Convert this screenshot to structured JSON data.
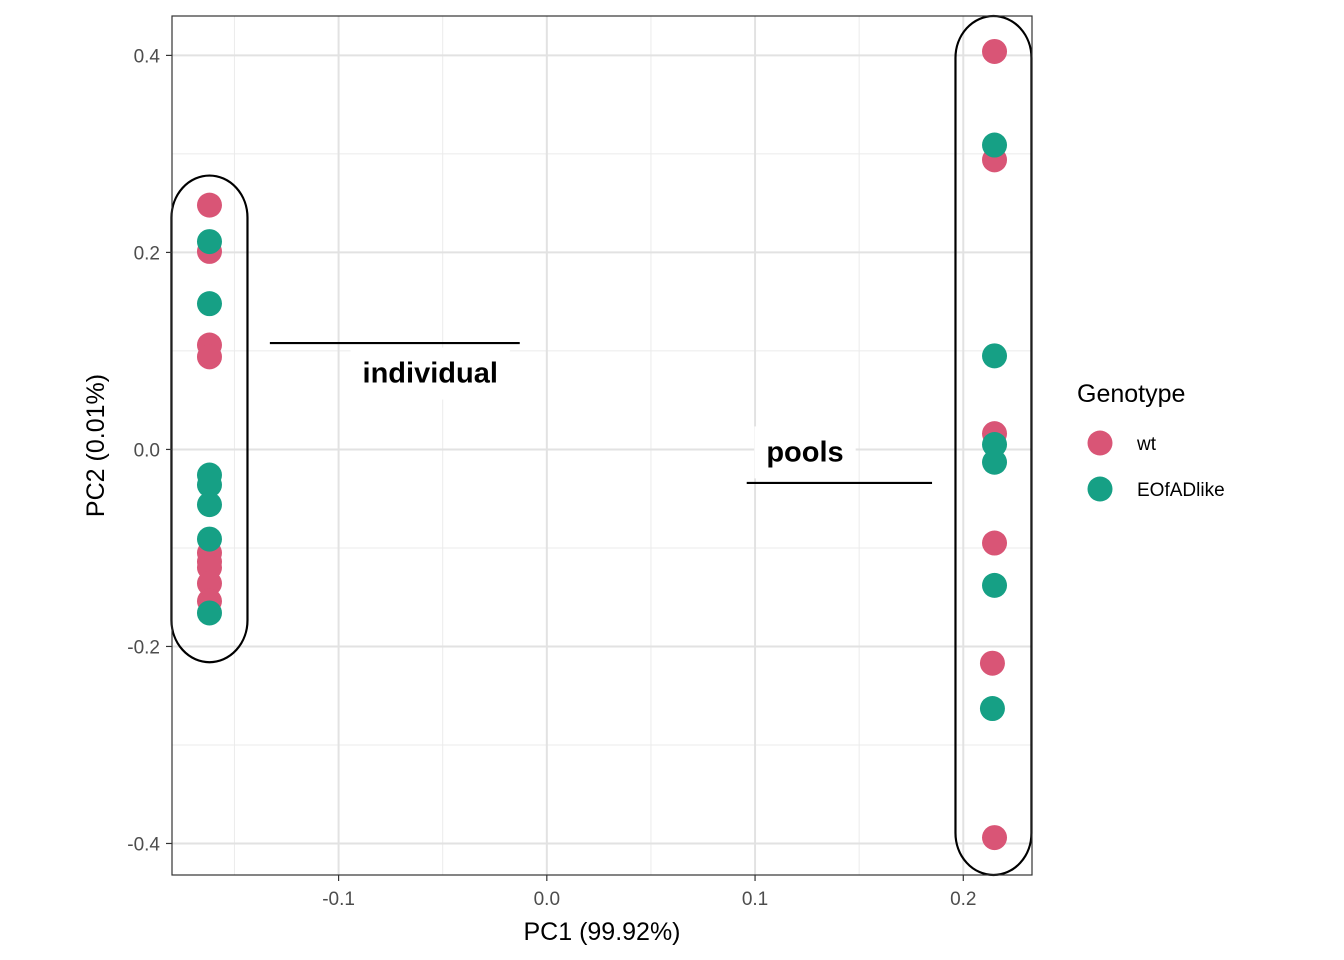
{
  "chart_data": {
    "type": "scatter",
    "xlabel": "PC1 (99.92%)",
    "ylabel": "PC2 (0.01%)",
    "xlim": [
      -0.18,
      0.233
    ],
    "ylim": [
      -0.432,
      0.44
    ],
    "x_ticks": [
      -0.1,
      0.0,
      0.1,
      0.2
    ],
    "x_tick_labels": [
      "-0.1",
      "0.0",
      "0.1",
      "0.2"
    ],
    "y_ticks": [
      -0.4,
      -0.2,
      0.0,
      0.2,
      0.4
    ],
    "y_tick_labels": [
      "-0.4",
      "-0.2",
      "0.0",
      "0.2",
      "0.4"
    ],
    "grid": true,
    "legend": {
      "title": "Genotype",
      "position": "right",
      "entries": [
        {
          "label": "wt",
          "color": "#D95576"
        },
        {
          "label": "EOfADlike",
          "color": "#16A085"
        }
      ]
    },
    "series": [
      {
        "name": "wt",
        "color": "#D95576",
        "points": [
          {
            "x": -0.162,
            "y": 0.248
          },
          {
            "x": -0.162,
            "y": 0.201
          },
          {
            "x": -0.162,
            "y": 0.106
          },
          {
            "x": -0.162,
            "y": 0.094
          },
          {
            "x": -0.162,
            "y": -0.105
          },
          {
            "x": -0.162,
            "y": -0.114
          },
          {
            "x": -0.162,
            "y": -0.12
          },
          {
            "x": -0.162,
            "y": -0.136
          },
          {
            "x": -0.162,
            "y": -0.154
          },
          {
            "x": 0.215,
            "y": 0.404
          },
          {
            "x": 0.215,
            "y": 0.294
          },
          {
            "x": 0.215,
            "y": 0.016
          },
          {
            "x": 0.215,
            "y": -0.095
          },
          {
            "x": 0.214,
            "y": -0.217
          },
          {
            "x": 0.215,
            "y": -0.394
          }
        ]
      },
      {
        "name": "EOfADlike",
        "color": "#16A085",
        "points": [
          {
            "x": -0.162,
            "y": 0.211
          },
          {
            "x": -0.162,
            "y": 0.148
          },
          {
            "x": -0.162,
            "y": -0.026
          },
          {
            "x": -0.162,
            "y": -0.036
          },
          {
            "x": -0.162,
            "y": -0.056
          },
          {
            "x": -0.162,
            "y": -0.091
          },
          {
            "x": -0.162,
            "y": -0.166
          },
          {
            "x": 0.215,
            "y": 0.309
          },
          {
            "x": 0.215,
            "y": 0.095
          },
          {
            "x": 0.215,
            "y": 0.005
          },
          {
            "x": 0.215,
            "y": -0.013
          },
          {
            "x": 0.215,
            "y": -0.138
          },
          {
            "x": 0.214,
            "y": -0.263
          }
        ]
      }
    ],
    "annotations": [
      {
        "label": "individual",
        "group_x": -0.162,
        "group_y": [
          -0.216,
          0.278
        ],
        "label_x": -0.056,
        "label_y": 0.078,
        "line_x": [
          -0.133,
          -0.013
        ],
        "line_y": 0.108
      },
      {
        "label": "pools",
        "group_x": 0.2145,
        "group_y": [
          -0.432,
          0.44
        ],
        "label_x": 0.124,
        "label_y": -0.002,
        "line_x": [
          0.096,
          0.185
        ],
        "line_y": -0.034
      }
    ]
  }
}
